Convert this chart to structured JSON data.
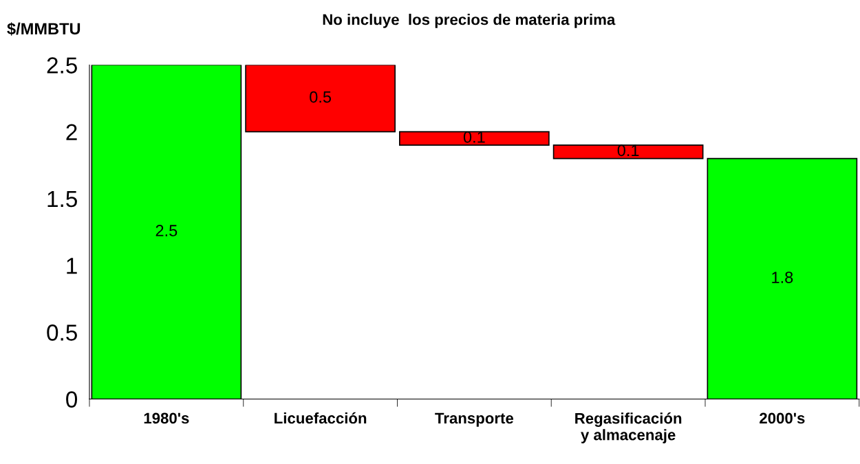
{
  "chart_data": {
    "type": "bar",
    "title": "No incluye  los precios de materia prima",
    "ylabel": "$/MMBTU",
    "categories": [
      "1980's",
      "Licuefacción",
      "Transporte",
      "Regasificación\ny almacenaje",
      "2000's"
    ],
    "values": [
      2.5,
      0.5,
      0.1,
      0.1,
      1.8
    ],
    "base": [
      0,
      2.0,
      1.9,
      1.8,
      0
    ],
    "colors": [
      "#00ff00",
      "#ff0000",
      "#ff0000",
      "#ff0000",
      "#00ff00"
    ],
    "ylim": [
      0,
      2.5
    ],
    "yticks": [
      0,
      0.5,
      1,
      1.5,
      2,
      2.5
    ],
    "data_labels": true,
    "grid": false,
    "legend": false
  }
}
